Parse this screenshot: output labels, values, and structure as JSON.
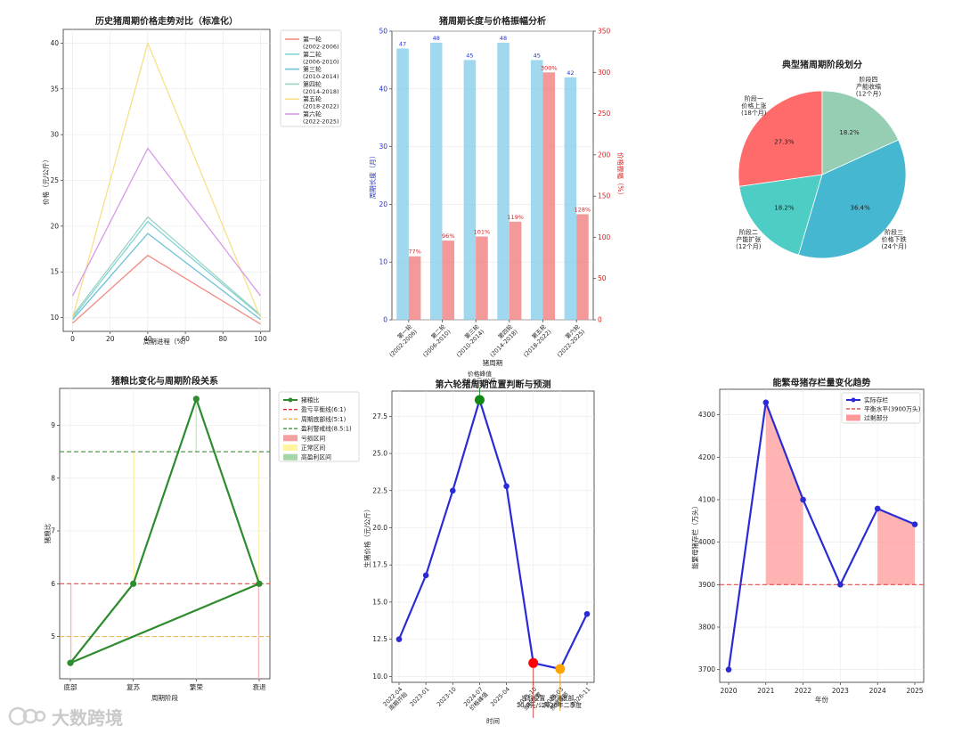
{
  "chart_data": [
    {
      "id": "p1",
      "type": "line",
      "title": "历史猪周期价格走势对比（标准化）",
      "xlabel": "周期进程（%）",
      "ylabel": "价格（元/公斤）",
      "xlim": [
        -5,
        105
      ],
      "ylim": [
        8.5,
        41.5
      ],
      "xticks": [
        0,
        20,
        40,
        60,
        80,
        100
      ],
      "yticks": [
        10,
        15,
        20,
        25,
        30,
        35,
        40
      ],
      "x": [
        0,
        40,
        100
      ],
      "series": [
        {
          "name": "第一轮",
          "period": "(2002-2006)",
          "color": "#f08a84",
          "values": [
            9.4,
            16.8,
            9.3
          ]
        },
        {
          "name": "第二轮",
          "period": "(2006-2010)",
          "color": "#7fd3d6",
          "values": [
            10.0,
            20.5,
            10.2
          ]
        },
        {
          "name": "第三轮",
          "period": "(2010-2014)",
          "color": "#6ec1d6",
          "values": [
            9.8,
            19.2,
            9.8
          ]
        },
        {
          "name": "第四轮",
          "period": "(2014-2018)",
          "color": "#9fd3c4",
          "values": [
            10.2,
            21.0,
            10.3
          ]
        },
        {
          "name": "第五轮",
          "period": "(2018-2022)",
          "color": "#f7e08a",
          "values": [
            10.0,
            40.0,
            10.0
          ]
        },
        {
          "name": "第六轮",
          "period": "(2022-2025)",
          "color": "#d79be6",
          "values": [
            12.4,
            28.5,
            12.4
          ]
        }
      ]
    },
    {
      "id": "p2",
      "type": "bar",
      "title": "猪周期长度与价格振幅分析",
      "xlabel": "猪周期",
      "ylabel": "周期长度（月）",
      "y2label": "价格振幅（%）",
      "ylim": [
        0,
        50
      ],
      "y2lim": [
        0,
        350
      ],
      "yticks": [
        0,
        10,
        20,
        30,
        40,
        50
      ],
      "y2ticks": [
        0,
        50,
        100,
        150,
        200,
        250,
        300,
        350
      ],
      "categories": [
        "第一轮",
        "第二轮",
        "第三轮",
        "第四轮",
        "第五轮",
        "第六轮"
      ],
      "category_periods": [
        "(2002-2006)",
        "(2006-2010)",
        "(2010-2014)",
        "(2014-2018)",
        "(2018-2022)",
        "(2022-2025)"
      ],
      "series": [
        {
          "name": "周期长度",
          "color": "#87ceeb",
          "values": [
            47,
            48,
            45,
            48,
            45,
            42
          ],
          "labels": [
            "47",
            "48",
            "45",
            "48",
            "45",
            "42"
          ]
        },
        {
          "name": "价格振幅",
          "color": "#f08080",
          "values": [
            77,
            96,
            101,
            119,
            300,
            128
          ],
          "labels": [
            "77%",
            "96%",
            "101%",
            "119%",
            "300%",
            "128%"
          ]
        }
      ]
    },
    {
      "id": "p3",
      "type": "pie",
      "title": "典型猪周期阶段划分",
      "slices": [
        {
          "name": "阶段一",
          "desc": "价格上涨",
          "duration": "(18个月)",
          "value": 27.3,
          "label": "27.3%",
          "color": "#ff6b6b"
        },
        {
          "name": "阶段二",
          "desc": "产能扩张",
          "duration": "(12个月)",
          "value": 18.2,
          "label": "18.2%",
          "color": "#4ecdc4"
        },
        {
          "name": "阶段三",
          "desc": "价格下跌",
          "duration": "(24个月)",
          "value": 36.4,
          "label": "36.4%",
          "color": "#45b7d1"
        },
        {
          "name": "阶段四",
          "desc": "产能收缩",
          "duration": "(12个月)",
          "value": 18.2,
          "label": "18.2%",
          "color": "#96ceb4"
        }
      ]
    },
    {
      "id": "p4",
      "type": "line",
      "title": "猪粮比变化与周期阶段关系",
      "xlabel": "周期阶段",
      "ylabel": "猪粮比",
      "ylim": [
        4.2,
        9.7
      ],
      "yticks": [
        5,
        6,
        7,
        8,
        9
      ],
      "categories": [
        "底部",
        "复苏",
        "繁荣",
        "衰退"
      ],
      "series": [
        {
          "name": "猪粮比",
          "color": "#2e8b2e",
          "x": [
            0,
            1,
            2,
            3,
            0
          ],
          "values": [
            4.5,
            6.0,
            9.5,
            6.0,
            4.5
          ]
        }
      ],
      "hlines": [
        {
          "name": "盈亏平衡线(6:1)",
          "value": 6.0,
          "color": "#e03030"
        },
        {
          "name": "周期底部线(5:1)",
          "value": 5.0,
          "color": "#f0b030"
        },
        {
          "name": "盈利警戒线(8.5:1)",
          "value": 8.5,
          "color": "#2e8b2e"
        }
      ],
      "zones": [
        {
          "name": "亏损区间",
          "color": "#f5a0a0"
        },
        {
          "name": "正常区间",
          "color": "#fff59d"
        },
        {
          "name": "高盈利区间",
          "color": "#a5d6a7"
        }
      ]
    },
    {
      "id": "p5",
      "type": "line",
      "title": "第六轮猪周期位置判断与预测",
      "xlabel": "时间",
      "ylabel": "生猪价格（元/公斤）",
      "ylim": [
        9.6,
        29.2
      ],
      "yticks": [
        10.0,
        12.5,
        15.0,
        17.5,
        20.0,
        22.5,
        25.0,
        27.5
      ],
      "categories": [
        "2022-04",
        "2023-01",
        "2023-10",
        "2024-07",
        "2025-04",
        "2025-10",
        "2026-03",
        "2026-11"
      ],
      "category_notes": [
        "周期开始",
        "",
        "",
        "价格峰值",
        "",
        "当前位置",
        "预测底部",
        ""
      ],
      "values": [
        12.5,
        16.8,
        22.5,
        28.6,
        22.8,
        10.9,
        10.5,
        14.2
      ],
      "color": "#2b2bd6",
      "markers": [
        {
          "index": 3,
          "color": "#118811"
        },
        {
          "index": 5,
          "color": "#ff0000"
        },
        {
          "index": 6,
          "color": "#ffa500"
        }
      ],
      "annotations": [
        "价格峰值",
        "28.6元/公斤",
        "当前位置",
        "10.9元/公斤",
        "预测底部",
        "2026年二季度"
      ]
    },
    {
      "id": "p6",
      "type": "line",
      "title": "能繁母猪存栏量变化趋势",
      "xlabel": "年份",
      "ylabel": "能繁母猪存栏（万头）",
      "ylim": [
        3670,
        4360
      ],
      "yticks": [
        3700,
        3800,
        3900,
        4000,
        4100,
        4200,
        4300
      ],
      "x": [
        2020,
        2021,
        2022,
        2023,
        2024,
        2025
      ],
      "values": [
        3700,
        4329,
        4100,
        3900,
        4079,
        4042
      ],
      "color": "#2b2bd6",
      "baseline": 3900,
      "legend": [
        "实际存栏",
        "平衡水平(3900万头)",
        "过剩部分"
      ],
      "fill_color": "#ff9999"
    }
  ],
  "watermark": {
    "text": "大数跨境"
  }
}
